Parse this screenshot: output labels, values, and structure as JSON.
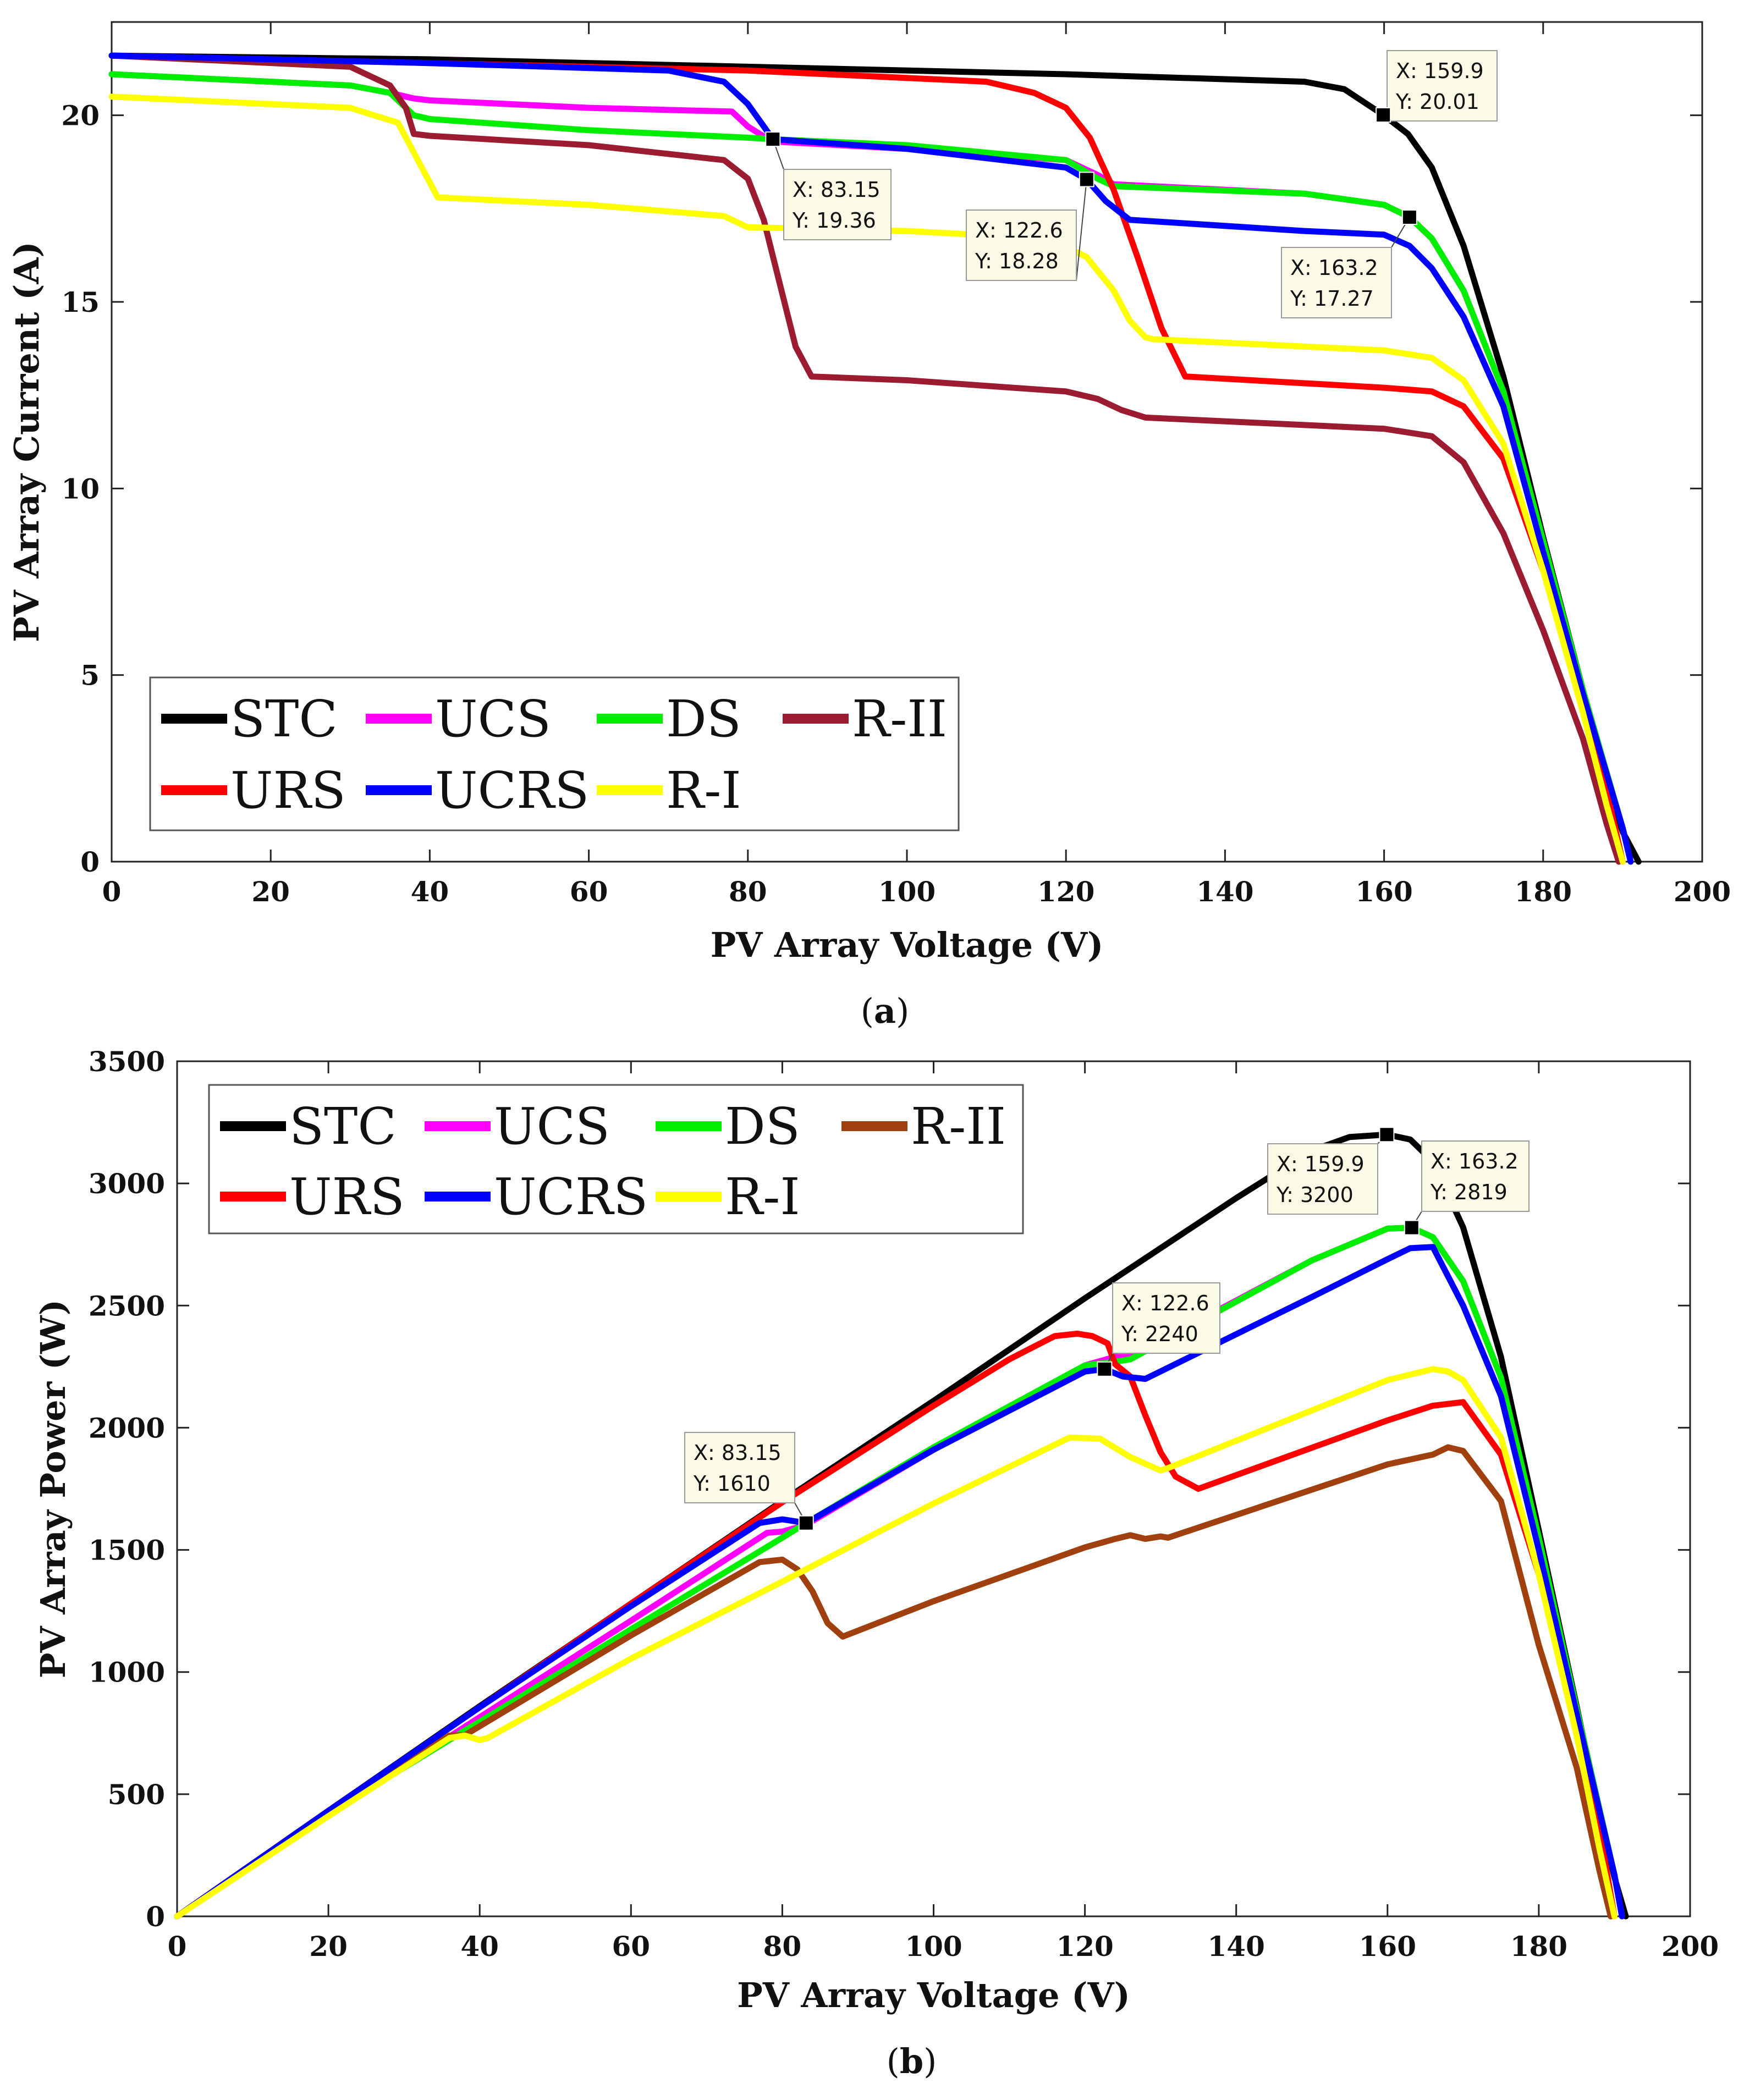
{
  "chart_data": [
    {
      "id": "a",
      "type": "line",
      "sublabel": "a",
      "xlabel": "PV Array Voltage (V)",
      "ylabel": "PV Array Current (A)",
      "xlim": [
        0,
        200
      ],
      "ylim": [
        0,
        22.5
      ],
      "xticks": [
        0,
        20,
        40,
        60,
        80,
        100,
        120,
        140,
        160,
        180,
        200
      ],
      "yticks": [
        0,
        5,
        10,
        15,
        20
      ],
      "grid": false,
      "legend_position": "bottom-left",
      "series": [
        {
          "name": "STC",
          "color": "#000000",
          "x": [
            0,
            40,
            80,
            120,
            150,
            155,
            159.9,
            163,
            166,
            170,
            175,
            180,
            185,
            188,
            190,
            192
          ],
          "y": [
            21.6,
            21.5,
            21.3,
            21.1,
            20.9,
            20.7,
            20.01,
            19.5,
            18.6,
            16.5,
            13.0,
            8.7,
            4.6,
            2.1,
            0.8,
            0
          ]
        },
        {
          "name": "UCS",
          "color": "#ff00ff",
          "x": [
            0,
            30,
            35,
            38,
            40,
            60,
            78,
            80,
            83,
            100,
            120,
            124,
            126,
            150,
            160,
            163.2,
            166,
            170,
            175,
            180,
            185,
            190,
            191
          ],
          "y": [
            21.1,
            20.8,
            20.6,
            20.45,
            20.4,
            20.2,
            20.1,
            19.7,
            19.3,
            19.1,
            18.8,
            18.4,
            18.15,
            17.9,
            17.6,
            17.27,
            16.7,
            15.3,
            12.6,
            8.6,
            4.6,
            0.9,
            0
          ]
        },
        {
          "name": "DS",
          "color": "#00ee00",
          "x": [
            0,
            30,
            35,
            38,
            40,
            60,
            80,
            83,
            100,
            120,
            124,
            126,
            150,
            160,
            163.2,
            166,
            170,
            175,
            180,
            185,
            190,
            191
          ],
          "y": [
            21.1,
            20.8,
            20.6,
            20.0,
            19.9,
            19.6,
            19.4,
            19.36,
            19.2,
            18.8,
            18.3,
            18.1,
            17.9,
            17.6,
            17.27,
            16.7,
            15.3,
            12.6,
            8.6,
            4.6,
            0.9,
            0
          ]
        },
        {
          "name": "R-II",
          "color": "#9b1b30",
          "x": [
            0,
            30,
            35,
            37,
            38,
            40,
            60,
            77,
            80,
            82,
            84,
            86,
            88,
            100,
            120,
            124,
            127,
            130,
            160,
            166,
            170,
            175,
            180,
            185,
            188,
            189.5
          ],
          "y": [
            21.6,
            21.3,
            20.8,
            20.2,
            19.5,
            19.45,
            19.2,
            18.8,
            18.3,
            17.2,
            15.5,
            13.8,
            13.0,
            12.9,
            12.6,
            12.4,
            12.1,
            11.9,
            11.6,
            11.4,
            10.7,
            8.8,
            6.2,
            3.3,
            1.0,
            0
          ]
        },
        {
          "name": "URS",
          "color": "#ff0000",
          "x": [
            0,
            40,
            80,
            110,
            116,
            120,
            123,
            126,
            129,
            132,
            135,
            160,
            166,
            170,
            175,
            180,
            185,
            188,
            190
          ],
          "y": [
            21.6,
            21.4,
            21.2,
            20.9,
            20.6,
            20.2,
            19.4,
            18.0,
            16.2,
            14.3,
            13.0,
            12.7,
            12.6,
            12.2,
            10.8,
            7.8,
            4.3,
            1.9,
            0
          ]
        },
        {
          "name": "UCRS",
          "color": "#0000ff",
          "x": [
            0,
            40,
            70,
            77,
            80,
            83.15,
            100,
            120,
            122.6,
            125,
            128,
            150,
            160,
            163.2,
            166,
            170,
            175,
            180,
            185,
            190,
            191
          ],
          "y": [
            21.6,
            21.4,
            21.2,
            20.9,
            20.3,
            19.36,
            19.1,
            18.6,
            18.28,
            17.7,
            17.2,
            16.9,
            16.8,
            16.5,
            15.9,
            14.6,
            12.2,
            8.3,
            4.5,
            0.9,
            0
          ]
        },
        {
          "name": "R-I",
          "color": "#ffff00",
          "x": [
            0,
            30,
            36,
            39,
            41,
            60,
            77,
            80,
            100,
            118,
            122.6,
            126,
            128,
            130,
            131,
            160,
            166,
            170,
            175,
            180,
            185,
            188,
            190
          ],
          "y": [
            20.5,
            20.2,
            19.8,
            18.6,
            17.8,
            17.6,
            17.3,
            17.0,
            16.9,
            16.7,
            16.2,
            15.3,
            14.5,
            14.05,
            14.0,
            13.7,
            13.5,
            12.9,
            11.2,
            7.8,
            4.0,
            1.5,
            0
          ]
        }
      ],
      "annotations": [
        {
          "x": 159.9,
          "y": 20.01,
          "line1": "X: 159.9",
          "line2": "Y: 20.01"
        },
        {
          "x": 83.15,
          "y": 19.36,
          "line1": "X: 83.15",
          "line2": "Y: 19.36"
        },
        {
          "x": 122.6,
          "y": 18.28,
          "line1": "X: 122.6",
          "line2": "Y: 18.28"
        },
        {
          "x": 163.2,
          "y": 17.27,
          "line1": "X: 163.2",
          "line2": "Y: 17.27"
        }
      ]
    },
    {
      "id": "b",
      "type": "line",
      "sublabel": "b",
      "xlabel": "PV Array Voltage (V)",
      "ylabel": "PV Array Power (W)",
      "xlim": [
        0,
        200
      ],
      "ylim": [
        0,
        3500
      ],
      "xticks": [
        0,
        20,
        40,
        60,
        80,
        100,
        120,
        140,
        160,
        180,
        200
      ],
      "yticks": [
        0,
        500,
        1000,
        1500,
        2000,
        2500,
        3000,
        3500
      ],
      "grid": false,
      "legend_position": "top-left",
      "series": [
        {
          "name": "STC",
          "color": "#000000",
          "x": [
            0,
            20,
            40,
            60,
            80,
            100,
            120,
            140,
            150,
            155,
            159.9,
            163,
            166,
            170,
            175,
            180,
            185,
            188,
            190,
            191.5
          ],
          "y": [
            0,
            432,
            860,
            1280,
            1700,
            2110,
            2530,
            2940,
            3135,
            3190,
            3200,
            3180,
            3090,
            2820,
            2290,
            1580,
            860,
            420,
            160,
            0
          ]
        },
        {
          "name": "UCS",
          "color": "#ff00ff",
          "x": [
            0,
            20,
            38,
            40,
            60,
            78,
            80,
            83,
            100,
            120,
            124,
            126,
            150,
            160,
            163.2,
            166,
            170,
            175,
            180,
            185,
            190,
            191
          ],
          "y": [
            0,
            420,
            775,
            815,
            1210,
            1570,
            1575,
            1600,
            1910,
            2255,
            2290,
            2290,
            2685,
            2815,
            2819,
            2780,
            2600,
            2205,
            1550,
            850,
            170,
            0
          ]
        },
        {
          "name": "DS",
          "color": "#00ee00",
          "x": [
            0,
            20,
            38,
            40,
            60,
            80,
            83.15,
            100,
            120,
            124,
            126,
            150,
            160,
            163.2,
            166,
            170,
            175,
            180,
            185,
            190,
            191
          ],
          "y": [
            0,
            420,
            760,
            796,
            1175,
            1550,
            1610,
            1920,
            2255,
            2270,
            2280,
            2685,
            2815,
            2819,
            2780,
            2600,
            2205,
            1550,
            850,
            170,
            0
          ]
        },
        {
          "name": "R-II",
          "color": "#a0400e",
          "x": [
            0,
            20,
            36,
            38,
            40,
            60,
            77,
            80,
            82,
            84,
            86,
            88,
            100,
            120,
            124,
            126,
            128,
            130,
            131,
            160,
            166,
            168,
            170,
            175,
            180,
            185,
            188,
            189.5
          ],
          "y": [
            0,
            432,
            740,
            741,
            778,
            1150,
            1450,
            1460,
            1420,
            1330,
            1200,
            1145,
            1290,
            1510,
            1545,
            1560,
            1545,
            1555,
            1550,
            1850,
            1890,
            1920,
            1905,
            1700,
            1110,
            610,
            190,
            0
          ]
        },
        {
          "name": "URS",
          "color": "#ff0000",
          "x": [
            0,
            20,
            40,
            60,
            80,
            100,
            110,
            116,
            119,
            121,
            123,
            124,
            126,
            128,
            130,
            132,
            135,
            160,
            166,
            170,
            175,
            180,
            185,
            188,
            190
          ],
          "y": [
            0,
            432,
            856,
            1280,
            1695,
            2090,
            2280,
            2375,
            2385,
            2375,
            2345,
            2260,
            2210,
            2050,
            1900,
            1800,
            1750,
            2030,
            2090,
            2105,
            1890,
            1400,
            800,
            360,
            0
          ]
        },
        {
          "name": "UCRS",
          "color": "#0000ff",
          "x": [
            0,
            20,
            40,
            60,
            77,
            80,
            83.15,
            100,
            120,
            122.6,
            125,
            128,
            150,
            160,
            163,
            166,
            170,
            175,
            180,
            185,
            190,
            191
          ],
          "y": [
            0,
            432,
            856,
            1270,
            1610,
            1625,
            1610,
            1910,
            2230,
            2240,
            2210,
            2200,
            2535,
            2690,
            2735,
            2740,
            2500,
            2130,
            1500,
            830,
            170,
            0
          ]
        },
        {
          "name": "R-I",
          "color": "#ffff00",
          "x": [
            0,
            20,
            36,
            38,
            40,
            41,
            60,
            80,
            100,
            118,
            122,
            126,
            130,
            131,
            160,
            166,
            168,
            170,
            175,
            180,
            185,
            188,
            190
          ],
          "y": [
            0,
            410,
            730,
            740,
            722,
            729,
            1055,
            1370,
            1690,
            1960,
            1955,
            1880,
            1825,
            1835,
            2195,
            2240,
            2230,
            2195,
            1960,
            1400,
            740,
            280,
            0
          ]
        }
      ],
      "annotations": [
        {
          "x": 159.9,
          "y": 3200,
          "line1": "X: 159.9",
          "line2": "Y: 3200"
        },
        {
          "x": 163.2,
          "y": 2819,
          "line1": "X: 163.2",
          "line2": "Y: 2819"
        },
        {
          "x": 122.6,
          "y": 2240,
          "line1": "X: 122.6",
          "line2": "Y: 2240"
        },
        {
          "x": 83.15,
          "y": 1610,
          "line1": "X: 83.15",
          "line2": "Y: 1610"
        }
      ]
    }
  ]
}
